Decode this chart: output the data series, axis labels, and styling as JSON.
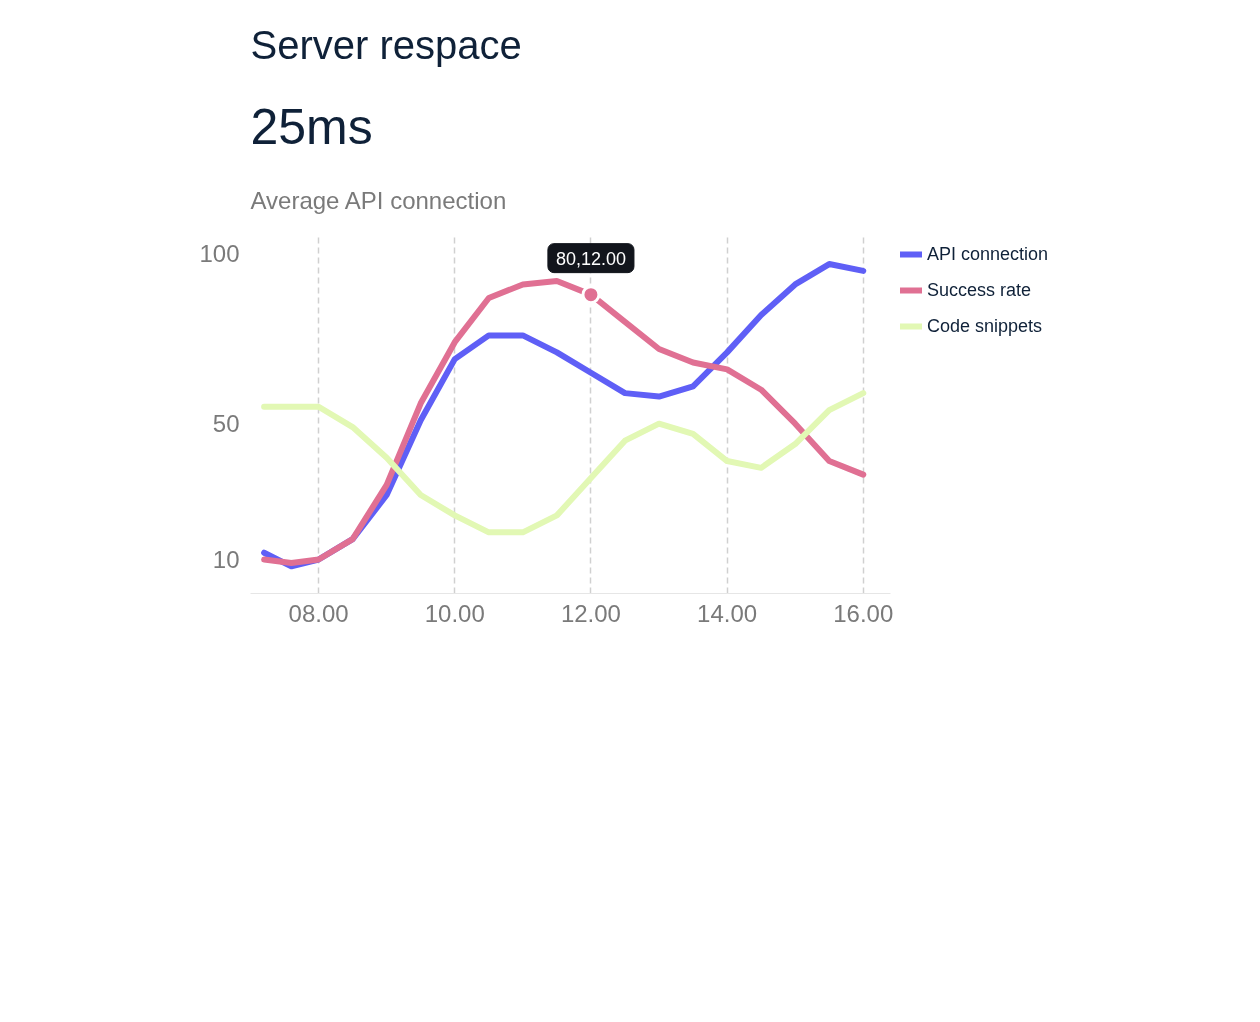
{
  "chart_data": {
    "type": "line",
    "title": "Server respace",
    "subtitle": "25ms",
    "annotations": [
      "Average API connection",
      {
        "text": "80,12.00",
        "x": 12,
        "y": 88
      }
    ],
    "x": [
      7.2,
      7.6,
      8.0,
      8.5,
      9.0,
      9.5,
      10.0,
      10.5,
      11.0,
      11.5,
      12.0,
      12.5,
      13.0,
      13.5,
      14.0,
      14.5,
      15.0,
      15.5,
      16.0
    ],
    "series": [
      {
        "name": "API connection",
        "color": "#5f5ff6",
        "values": [
          12,
          8,
          10,
          16,
          29,
          51,
          69,
          76,
          76,
          71,
          65,
          59,
          58,
          61,
          71,
          82,
          91,
          97,
          95
        ]
      },
      {
        "name": "Success rate",
        "color": "#e07093",
        "values": [
          10,
          9,
          10,
          16,
          32,
          56,
          74,
          87,
          91,
          92,
          88,
          80,
          72,
          68,
          66,
          60,
          50,
          39,
          35
        ]
      },
      {
        "name": "Code snippets",
        "color": "#e2f8b4",
        "values": [
          55,
          55,
          55,
          49,
          40,
          29,
          23,
          18,
          18,
          23,
          34,
          45,
          50,
          47,
          39,
          37,
          44,
          54,
          59
        ]
      }
    ],
    "xlim": [
      7,
      16.4
    ],
    "ylim": [
      0,
      106
    ],
    "xticks": [
      {
        "value": 8,
        "label": "08.00"
      },
      {
        "value": 10,
        "label": "10.00"
      },
      {
        "value": 12,
        "label": "12.00"
      },
      {
        "value": 14,
        "label": "14.00"
      },
      {
        "value": 16,
        "label": "16.00"
      }
    ],
    "yticks": [
      10,
      50,
      100
    ],
    "grid": "x",
    "legend": "top right",
    "line_style": "solid",
    "marker": "none"
  }
}
